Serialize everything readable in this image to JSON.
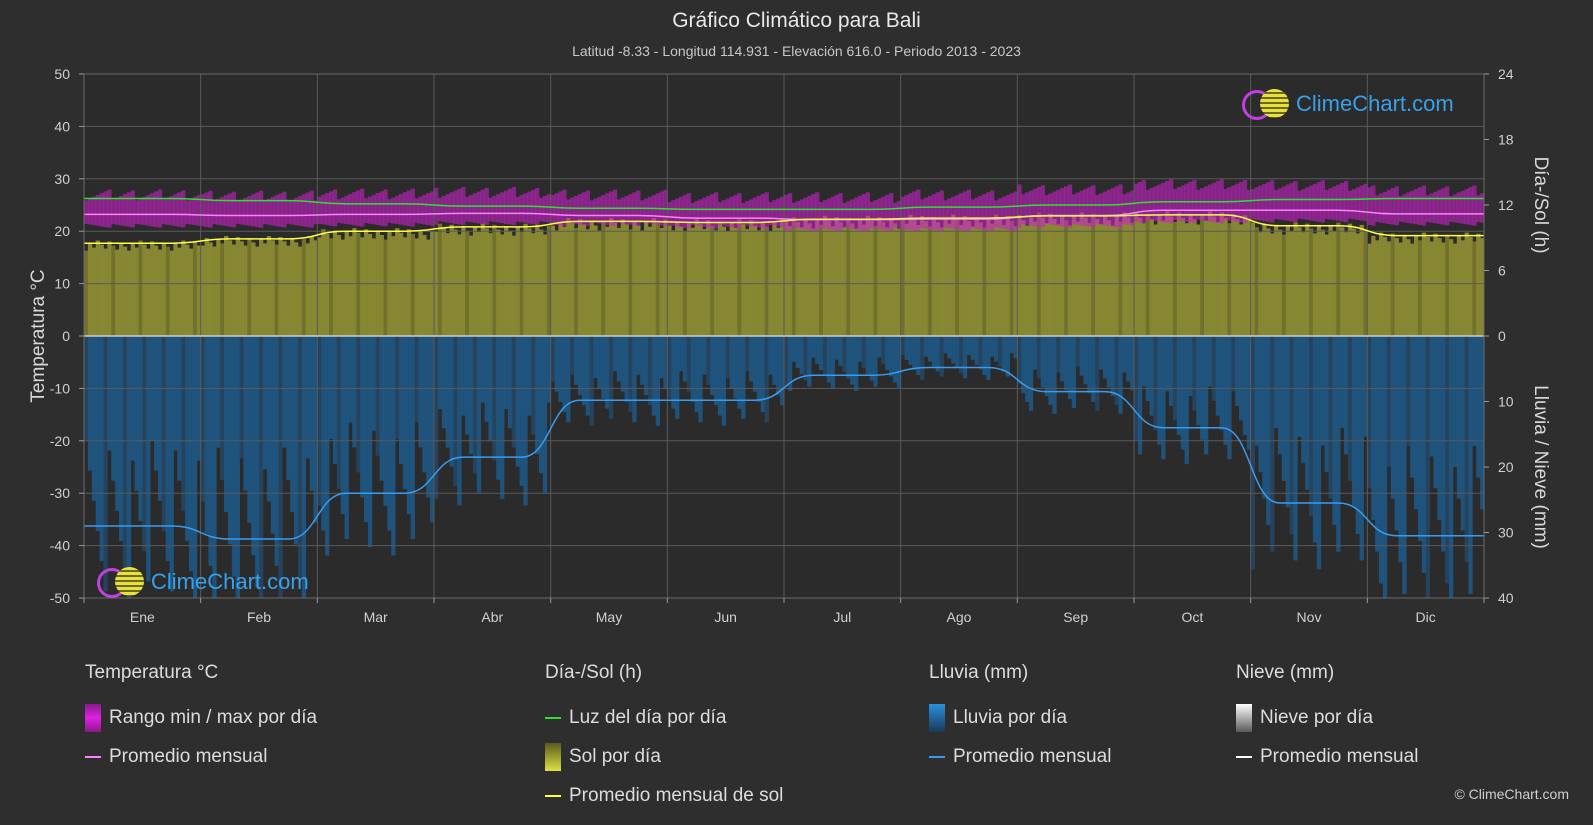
{
  "title": "Gráfico Climático para Bali",
  "subtitle": "Latitud -8.33 - Longitud 114.931 - Elevación 616.0 - Periodo 2013 - 2023",
  "logo_text": "ClimeChart.com",
  "copyright": "© ClimeChart.com",
  "colors": {
    "background": "#2e2e2e",
    "temp_range": "#d020d0",
    "temp_avg": "#ff80ff",
    "daylight": "#30e030",
    "sunshine": "#c8c83a",
    "sunshine_avg": "#ffff40",
    "rain": "#2080d0",
    "rain_avg": "#3a9cf0",
    "snow_avg": "#ffffff"
  },
  "legend": {
    "temperature": {
      "title": "Temperatura °C",
      "range_label": "Rango min / max por día",
      "avg_label": "Promedio mensual"
    },
    "sun": {
      "title": "Día-/Sol (h)",
      "daylight_label": "Luz del día por día",
      "sunshine_label": "Sol por día",
      "sunshine_avg_label": "Promedio mensual de sol"
    },
    "rain": {
      "title": "Lluvia (mm)",
      "rain_label": "Lluvia por día",
      "avg_label": "Promedio mensual"
    },
    "snow": {
      "title": "Nieve (mm)",
      "snow_label": "Nieve por día",
      "avg_label": "Promedio mensual"
    }
  },
  "chart_data": {
    "type": "area",
    "categories": [
      "Ene",
      "Feb",
      "Mar",
      "Abr",
      "May",
      "Jun",
      "Jul",
      "Ago",
      "Sep",
      "Oct",
      "Nov",
      "Dic"
    ],
    "left_axis": {
      "label": "Temperatura °C",
      "ticks": [
        50,
        40,
        30,
        20,
        10,
        0,
        -10,
        -20,
        -30,
        -40,
        -50
      ],
      "ylim": [
        -50,
        50
      ]
    },
    "right_axis_top": {
      "label": "Día-/Sol (h)",
      "ticks": [
        24,
        18,
        12,
        6,
        0
      ],
      "ylim": [
        0,
        24
      ]
    },
    "right_axis_bottom": {
      "label": "Lluvia / Nieve (mm)",
      "ticks": [
        0,
        10,
        20,
        30,
        40
      ],
      "ylim": [
        0,
        40
      ]
    },
    "grid": true,
    "series": [
      {
        "name": "Rango min / max por día",
        "kind": "range",
        "axis": "temperature",
        "min": [
          21.0,
          21.0,
          21.2,
          21.5,
          21.3,
          20.8,
          20.3,
          20.3,
          21.0,
          21.8,
          22.0,
          21.4
        ],
        "max": [
          27.0,
          26.8,
          27.2,
          27.5,
          27.0,
          26.5,
          26.5,
          27.0,
          28.0,
          29.0,
          28.8,
          27.8
        ]
      },
      {
        "name": "Promedio mensual",
        "kind": "line",
        "axis": "temperature",
        "values": [
          23.2,
          23.0,
          23.2,
          23.4,
          23.0,
          22.5,
          22.2,
          22.3,
          23.0,
          24.0,
          24.0,
          23.3
        ]
      },
      {
        "name": "Luz del día por día",
        "kind": "line",
        "axis": "sun",
        "values": [
          12.6,
          12.4,
          12.1,
          11.9,
          11.7,
          11.6,
          11.6,
          11.8,
          12.0,
          12.3,
          12.5,
          12.6
        ]
      },
      {
        "name": "Sol por día",
        "kind": "area",
        "axis": "sun",
        "values": [
          8.5,
          8.9,
          9.6,
          10.0,
          10.5,
          10.4,
          10.7,
          10.8,
          11.0,
          11.1,
          10.1,
          9.2
        ]
      },
      {
        "name": "Promedio mensual de sol",
        "kind": "line",
        "axis": "sun",
        "values": [
          8.5,
          8.9,
          9.6,
          10.0,
          10.5,
          10.4,
          10.7,
          10.8,
          11.0,
          11.1,
          10.1,
          9.2
        ]
      },
      {
        "name": "Lluvia por día",
        "kind": "bars",
        "axis": "rain",
        "values": [
          29.0,
          31.0,
          24.0,
          18.5,
          9.8,
          9.8,
          6.0,
          4.8,
          8.5,
          14.0,
          25.5,
          30.5
        ]
      },
      {
        "name": "Promedio mensual",
        "kind": "line",
        "axis": "rain",
        "values": [
          29.0,
          31.0,
          24.0,
          18.5,
          9.8,
          9.8,
          6.0,
          4.8,
          8.5,
          14.0,
          25.5,
          30.5
        ]
      },
      {
        "name": "Promedio mensual",
        "kind": "line",
        "axis": "snow",
        "values": [
          0,
          0,
          0,
          0,
          0,
          0,
          0,
          0,
          0,
          0,
          0,
          0
        ]
      }
    ]
  }
}
